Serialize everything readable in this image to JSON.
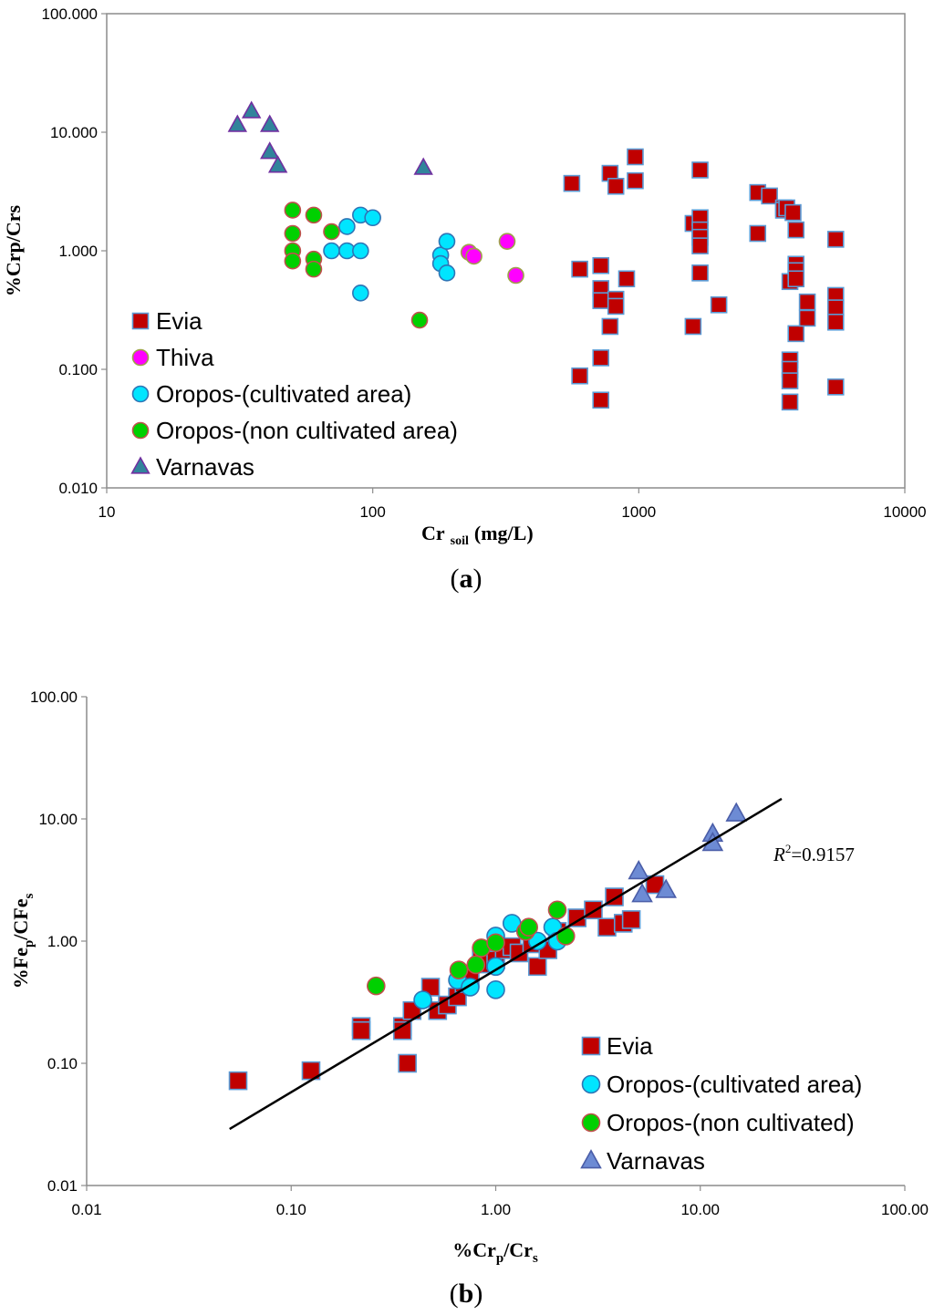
{
  "chart_data": [
    {
      "type": "scatter",
      "panel_label": "a",
      "xlabel": {
        "main": "Cr",
        "sub": "soil",
        "unit": "(mg/L)"
      },
      "ylabel": "%Crp/Crs",
      "xscale": "log",
      "yscale": "log",
      "xlim": [
        10,
        10000
      ],
      "ylim": [
        0.01,
        100
      ],
      "xticks": [
        "10",
        "100",
        "1000",
        "10000"
      ],
      "yticks": [
        "0.010",
        "0.100",
        "1.000",
        "10.000",
        "100.000"
      ],
      "grid": false,
      "legend_position": "bottom-left",
      "series": [
        {
          "name": "Evia",
          "marker": "square",
          "color": "#c00000",
          "stroke": "#5b9bd5",
          "points": [
            [
              560,
              3.7
            ],
            [
              600,
              0.7
            ],
            [
              600,
              0.088
            ],
            [
              720,
              0.75
            ],
            [
              720,
              0.48
            ],
            [
              720,
              0.38
            ],
            [
              720,
              0.125
            ],
            [
              720,
              0.055
            ],
            [
              780,
              4.5
            ],
            [
              780,
              0.23
            ],
            [
              820,
              3.5
            ],
            [
              820,
              0.39
            ],
            [
              820,
              0.34
            ],
            [
              900,
              0.58
            ],
            [
              970,
              6.2
            ],
            [
              970,
              3.9
            ],
            [
              1600,
              1.7
            ],
            [
              1600,
              0.23
            ],
            [
              1700,
              4.8
            ],
            [
              1700,
              1.9
            ],
            [
              1700,
              1.5
            ],
            [
              1700,
              1.3
            ],
            [
              1700,
              1.1
            ],
            [
              1700,
              0.65
            ],
            [
              2000,
              0.35
            ],
            [
              2800,
              3.1
            ],
            [
              2800,
              1.4
            ],
            [
              3100,
              2.9
            ],
            [
              3500,
              2.3
            ],
            [
              3500,
              2.2
            ],
            [
              3600,
              2.3
            ],
            [
              3700,
              0.55
            ],
            [
              3700,
              0.12
            ],
            [
              3700,
              0.1
            ],
            [
              3700,
              0.08
            ],
            [
              3700,
              0.053
            ],
            [
              3800,
              2.1
            ],
            [
              3900,
              1.5
            ],
            [
              3900,
              0.77
            ],
            [
              3900,
              0.68
            ],
            [
              3900,
              0.58
            ],
            [
              3900,
              0.2
            ],
            [
              4300,
              0.37
            ],
            [
              4300,
              0.27
            ],
            [
              5500,
              1.25
            ],
            [
              5500,
              0.42
            ],
            [
              5500,
              0.33
            ],
            [
              5500,
              0.25
            ],
            [
              5500,
              0.071
            ]
          ]
        },
        {
          "name": "Thiva",
          "marker": "circle",
          "color": "#ff00ff",
          "stroke": "#9ea24a",
          "points": [
            [
              230,
              0.97
            ],
            [
              240,
              0.9
            ],
            [
              320,
              1.2
            ],
            [
              345,
              0.62
            ]
          ]
        },
        {
          "name": "Oropos-(cultivated area)",
          "marker": "circle",
          "color": "#00e5ff",
          "stroke": "#2e75b6",
          "points": [
            [
              70,
              1.0
            ],
            [
              80,
              1.6
            ],
            [
              80,
              1.0
            ],
            [
              90,
              2.0
            ],
            [
              90,
              1.0
            ],
            [
              90,
              0.44
            ],
            [
              100,
              1.9
            ],
            [
              180,
              0.92
            ],
            [
              180,
              0.78
            ],
            [
              190,
              1.2
            ],
            [
              190,
              0.65
            ]
          ]
        },
        {
          "name": "Oropos-(non cultivated area)",
          "marker": "circle",
          "color": "#00d000",
          "stroke": "#c0504d",
          "points": [
            [
              50,
              2.2
            ],
            [
              50,
              1.4
            ],
            [
              50,
              1.0
            ],
            [
              50,
              0.82
            ],
            [
              60,
              2.0
            ],
            [
              60,
              0.85
            ],
            [
              60,
              0.7
            ],
            [
              70,
              1.45
            ],
            [
              150,
              0.26
            ]
          ]
        },
        {
          "name": "Varnavas",
          "marker": "triangle",
          "color": "#31849b",
          "stroke": "#7030a0",
          "points": [
            [
              31,
              11.5
            ],
            [
              35,
              15.0
            ],
            [
              41,
              11.5
            ],
            [
              41,
              6.8
            ],
            [
              44,
              5.2
            ],
            [
              155,
              5.0
            ]
          ]
        }
      ]
    },
    {
      "type": "scatter",
      "panel_label": "b",
      "xlabel": "%Crp/Crs",
      "ylabel": "%Fep/CFes",
      "xscale": "log",
      "yscale": "log",
      "xlim": [
        0.01,
        100
      ],
      "ylim": [
        0.01,
        100
      ],
      "xticks": [
        "0.01",
        "0.10",
        "1.00",
        "10.00",
        "100.00"
      ],
      "yticks": [
        "0.01",
        "0.10",
        "1.00",
        "10.00",
        "100.00"
      ],
      "grid": false,
      "legend_position": "bottom-right",
      "trendline": {
        "from": [
          0.05,
          0.029
        ],
        "to": [
          25,
          14.6
        ],
        "r2_label": "=0.9157"
      },
      "series": [
        {
          "name": "Evia",
          "marker": "square",
          "color": "#c00000",
          "stroke": "#5b9bd5",
          "points": [
            [
              0.055,
              0.072
            ],
            [
              0.125,
              0.087
            ],
            [
              0.22,
              0.2
            ],
            [
              0.22,
              0.185
            ],
            [
              0.35,
              0.2
            ],
            [
              0.35,
              0.185
            ],
            [
              0.37,
              0.1
            ],
            [
              0.39,
              0.27
            ],
            [
              0.48,
              0.42
            ],
            [
              0.52,
              0.27
            ],
            [
              0.58,
              0.3
            ],
            [
              0.65,
              0.35
            ],
            [
              0.7,
              0.45
            ],
            [
              0.75,
              0.5
            ],
            [
              0.85,
              0.75
            ],
            [
              0.9,
              0.65
            ],
            [
              1.0,
              0.7
            ],
            [
              1.1,
              0.85
            ],
            [
              1.2,
              0.9
            ],
            [
              1.3,
              0.8
            ],
            [
              1.5,
              0.95
            ],
            [
              1.6,
              0.62
            ],
            [
              1.8,
              0.85
            ],
            [
              2.0,
              1.2
            ],
            [
              2.5,
              1.55
            ],
            [
              3.0,
              1.8
            ],
            [
              3.5,
              1.3
            ],
            [
              3.8,
              2.3
            ],
            [
              4.2,
              1.4
            ],
            [
              4.6,
              1.5
            ],
            [
              6.0,
              2.9
            ]
          ]
        },
        {
          "name": "Oropos-(cultivated area)",
          "marker": "circle",
          "color": "#00e5ff",
          "stroke": "#2e75b6",
          "points": [
            [
              0.44,
              0.33
            ],
            [
              0.65,
              0.48
            ],
            [
              0.75,
              0.42
            ],
            [
              1.0,
              0.4
            ],
            [
              1.0,
              0.62
            ],
            [
              1.0,
              1.1
            ],
            [
              1.2,
              1.4
            ],
            [
              1.6,
              1.0
            ],
            [
              1.9,
              1.3
            ],
            [
              2.0,
              1.0
            ]
          ]
        },
        {
          "name": "Oropos-(non cultivated)",
          "marker": "circle",
          "color": "#00d000",
          "stroke": "#c0504d",
          "points": [
            [
              0.26,
              0.43
            ],
            [
              0.66,
              0.58
            ],
            [
              0.8,
              0.64
            ],
            [
              0.85,
              0.88
            ],
            [
              1.0,
              0.97
            ],
            [
              1.4,
              1.2
            ],
            [
              1.45,
              1.3
            ],
            [
              2.0,
              1.8
            ],
            [
              2.2,
              1.1
            ]
          ]
        },
        {
          "name": "Varnavas",
          "marker": "triangle",
          "color": "#6d8bd4",
          "stroke": "#4a5da8",
          "points": [
            [
              5.0,
              3.7
            ],
            [
              5.2,
              2.4
            ],
            [
              6.8,
              2.6
            ],
            [
              11.5,
              7.5
            ],
            [
              11.5,
              6.3
            ],
            [
              15.0,
              11.0
            ]
          ]
        }
      ]
    }
  ],
  "r2_prefix": "R",
  "r2_sup": "2"
}
